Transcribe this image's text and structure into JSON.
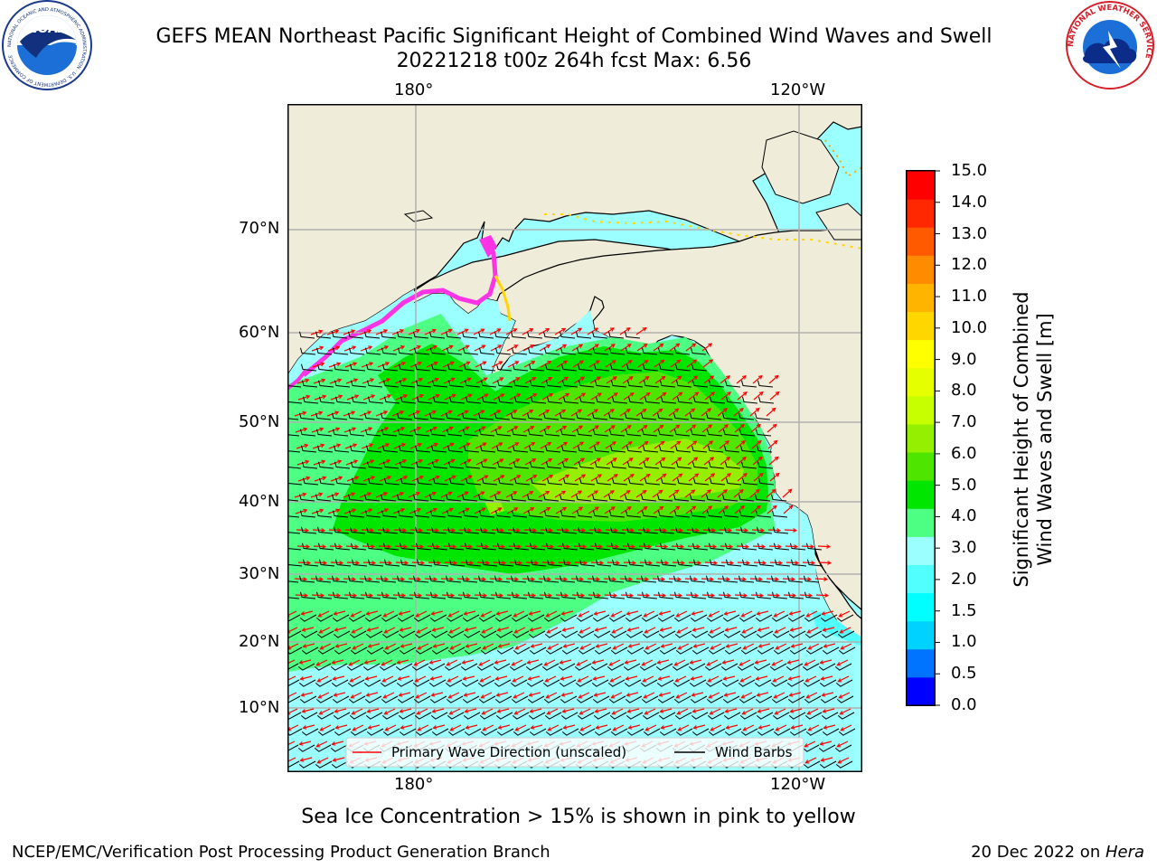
{
  "header": {
    "title_line1": "GEFS MEAN Northeast Pacific Significant Height of Combined Wind Waves and Swell",
    "title_line2": "20221218 t00z 264h fcst   Max: 6.56",
    "logo_left": "NOAA",
    "logo_left_ring_text": "NATIONAL OCEANIC AND ATMOSPHERIC ADMINISTRATION · U.S. DEPARTMENT OF COMMERCE",
    "logo_right_ring_text": "NATIONAL WEATHER SERVICE"
  },
  "map": {
    "top_lon_labels": [
      "180°",
      "120°W"
    ],
    "bottom_lon_labels": [
      "180°",
      "120°W"
    ],
    "lat_labels": [
      "70°N",
      "60°N",
      "50°N",
      "40°N",
      "30°N",
      "20°N",
      "10°N"
    ],
    "legend": {
      "wave_label": "Primary Wave Direction (unscaled)",
      "barb_label": "Wind Barbs"
    }
  },
  "colorbar": {
    "ticks": [
      "15.0",
      "14.0",
      "13.0",
      "12.0",
      "11.0",
      "10.0",
      "9.0",
      "8.0",
      "7.0",
      "6.0",
      "5.0",
      "4.0",
      "3.0",
      "2.0",
      "1.5",
      "1.0",
      "0.5",
      "0.0"
    ],
    "colors": [
      "#0000ff",
      "#0073ff",
      "#00d2ff",
      "#00ffff",
      "#51ffff",
      "#9bffff",
      "#4dff82",
      "#00e600",
      "#4ee600",
      "#94f000",
      "#c8ff00",
      "#e6ff00",
      "#ffff00",
      "#ffd700",
      "#ffb400",
      "#ff8c00",
      "#ff5a00",
      "#ff2800",
      "#ff0000"
    ],
    "label_line1": "Significant Height of Combined",
    "label_line2": "Wind Waves and Swell [m]"
  },
  "footer": {
    "ice_note": "Sea Ice Concentration > 15% is shown in pink to yellow",
    "left": "NCEP/EMC/Verification Post Processing Product Generation Branch",
    "right_date": "20 Dec 2022 on ",
    "right_machine": "Hera"
  }
}
